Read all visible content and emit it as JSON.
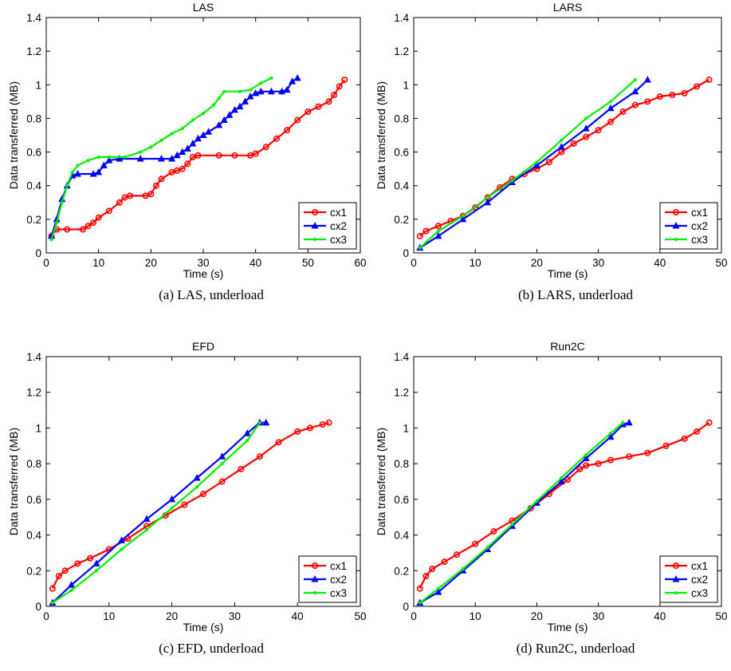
{
  "chart_data": [
    {
      "type": "line",
      "panel": "a",
      "title": "LAS",
      "caption": "(a) LAS, underload",
      "xlabel": "Time (s)",
      "ylabel": "Data transferred (MB)",
      "xlim": [
        0,
        60
      ],
      "ylim": [
        0,
        1.4
      ],
      "xticks": [
        0,
        10,
        20,
        30,
        40,
        50,
        60
      ],
      "yticks": [
        0,
        0.2,
        0.4,
        0.6,
        0.8,
        1,
        1.2,
        1.4
      ],
      "legend": "bottom-right",
      "series": [
        {
          "name": "cx1",
          "color": "#ff0000",
          "marker": "circle",
          "points": [
            [
              1,
              0.1
            ],
            [
              2,
              0.14
            ],
            [
              4,
              0.14
            ],
            [
              7,
              0.14
            ],
            [
              8,
              0.16
            ],
            [
              9,
              0.18
            ],
            [
              10,
              0.21
            ],
            [
              12,
              0.25
            ],
            [
              14,
              0.3
            ],
            [
              15,
              0.33
            ],
            [
              16,
              0.34
            ],
            [
              19,
              0.34
            ],
            [
              20,
              0.35
            ],
            [
              21,
              0.4
            ],
            [
              22,
              0.44
            ],
            [
              24,
              0.48
            ],
            [
              25,
              0.49
            ],
            [
              26,
              0.5
            ],
            [
              27,
              0.53
            ],
            [
              28,
              0.57
            ],
            [
              29,
              0.58
            ],
            [
              33,
              0.58
            ],
            [
              36,
              0.58
            ],
            [
              39,
              0.58
            ],
            [
              40,
              0.59
            ],
            [
              42,
              0.63
            ],
            [
              44,
              0.68
            ],
            [
              46,
              0.73
            ],
            [
              48,
              0.79
            ],
            [
              50,
              0.84
            ],
            [
              52,
              0.87
            ],
            [
              54,
              0.9
            ],
            [
              55,
              0.94
            ],
            [
              56,
              0.99
            ],
            [
              57,
              1.03
            ]
          ]
        },
        {
          "name": "cx2",
          "color": "#0000ff",
          "marker": "triangle",
          "points": [
            [
              1,
              0.1
            ],
            [
              2,
              0.2
            ],
            [
              3,
              0.32
            ],
            [
              4,
              0.4
            ],
            [
              5,
              0.46
            ],
            [
              6,
              0.47
            ],
            [
              9,
              0.47
            ],
            [
              10,
              0.48
            ],
            [
              11,
              0.52
            ],
            [
              12,
              0.55
            ],
            [
              14,
              0.56
            ],
            [
              18,
              0.56
            ],
            [
              22,
              0.56
            ],
            [
              24,
              0.56
            ],
            [
              25,
              0.58
            ],
            [
              26,
              0.6
            ],
            [
              27,
              0.62
            ],
            [
              28,
              0.65
            ],
            [
              29,
              0.68
            ],
            [
              30,
              0.7
            ],
            [
              31,
              0.72
            ],
            [
              33,
              0.76
            ],
            [
              34,
              0.79
            ],
            [
              35,
              0.82
            ],
            [
              36,
              0.85
            ],
            [
              37,
              0.87
            ],
            [
              38,
              0.9
            ],
            [
              39,
              0.93
            ],
            [
              40,
              0.95
            ],
            [
              41,
              0.96
            ],
            [
              43,
              0.96
            ],
            [
              45,
              0.96
            ],
            [
              46,
              0.97
            ],
            [
              47,
              1.02
            ],
            [
              48,
              1.04
            ]
          ]
        },
        {
          "name": "cx3",
          "color": "#00ee00",
          "marker": "dot",
          "points": [
            [
              1,
              0.08
            ],
            [
              2,
              0.18
            ],
            [
              3,
              0.3
            ],
            [
              4,
              0.4
            ],
            [
              5,
              0.48
            ],
            [
              6,
              0.52
            ],
            [
              8,
              0.55
            ],
            [
              10,
              0.57
            ],
            [
              12,
              0.57
            ],
            [
              15,
              0.57
            ],
            [
              18,
              0.6
            ],
            [
              20,
              0.63
            ],
            [
              22,
              0.67
            ],
            [
              24,
              0.71
            ],
            [
              26,
              0.74
            ],
            [
              28,
              0.79
            ],
            [
              30,
              0.83
            ],
            [
              32,
              0.88
            ],
            [
              33,
              0.92
            ],
            [
              34,
              0.96
            ],
            [
              37,
              0.96
            ],
            [
              39,
              0.97
            ],
            [
              41,
              1.01
            ],
            [
              43,
              1.04
            ]
          ]
        }
      ]
    },
    {
      "type": "line",
      "panel": "b",
      "title": "LARS",
      "caption": "(b) LARS, underload",
      "xlabel": "Time (s)",
      "ylabel": "Data transferred (MB)",
      "xlim": [
        0,
        50
      ],
      "ylim": [
        0,
        1.4
      ],
      "xticks": [
        0,
        10,
        20,
        30,
        40,
        50
      ],
      "yticks": [
        0,
        0.2,
        0.4,
        0.6,
        0.8,
        1,
        1.2,
        1.4
      ],
      "legend": "bottom-right",
      "series": [
        {
          "name": "cx1",
          "color": "#ff0000",
          "marker": "circle",
          "points": [
            [
              1,
              0.1
            ],
            [
              2,
              0.13
            ],
            [
              4,
              0.16
            ],
            [
              6,
              0.19
            ],
            [
              8,
              0.22
            ],
            [
              10,
              0.27
            ],
            [
              12,
              0.33
            ],
            [
              14,
              0.39
            ],
            [
              16,
              0.44
            ],
            [
              18,
              0.47
            ],
            [
              20,
              0.5
            ],
            [
              22,
              0.54
            ],
            [
              24,
              0.6
            ],
            [
              26,
              0.65
            ],
            [
              28,
              0.69
            ],
            [
              30,
              0.73
            ],
            [
              32,
              0.78
            ],
            [
              34,
              0.84
            ],
            [
              36,
              0.88
            ],
            [
              38,
              0.9
            ],
            [
              40,
              0.93
            ],
            [
              42,
              0.94
            ],
            [
              44,
              0.95
            ],
            [
              46,
              0.99
            ],
            [
              48,
              1.03
            ]
          ]
        },
        {
          "name": "cx2",
          "color": "#0000ff",
          "marker": "triangle",
          "points": [
            [
              1,
              0.03
            ],
            [
              4,
              0.1
            ],
            [
              8,
              0.2
            ],
            [
              12,
              0.3
            ],
            [
              16,
              0.42
            ],
            [
              20,
              0.52
            ],
            [
              24,
              0.63
            ],
            [
              28,
              0.74
            ],
            [
              32,
              0.86
            ],
            [
              36,
              0.96
            ],
            [
              38,
              1.03
            ]
          ]
        },
        {
          "name": "cx3",
          "color": "#00ee00",
          "marker": "dot",
          "points": [
            [
              1,
              0.03
            ],
            [
              4,
              0.13
            ],
            [
              8,
              0.22
            ],
            [
              12,
              0.33
            ],
            [
              16,
              0.43
            ],
            [
              20,
              0.54
            ],
            [
              24,
              0.67
            ],
            [
              28,
              0.8
            ],
            [
              32,
              0.9
            ],
            [
              36,
              1.03
            ]
          ]
        }
      ]
    },
    {
      "type": "line",
      "panel": "c",
      "title": "EFD",
      "caption": "(c) EFD, underload",
      "xlabel": "Time (s)",
      "ylabel": "Data transferred (MB)",
      "xlim": [
        0,
        50
      ],
      "ylim": [
        0,
        1.4
      ],
      "xticks": [
        0,
        10,
        20,
        30,
        40,
        50
      ],
      "yticks": [
        0,
        0.2,
        0.4,
        0.6,
        0.8,
        1,
        1.2,
        1.4
      ],
      "legend": "bottom-right",
      "series": [
        {
          "name": "cx1",
          "color": "#ff0000",
          "marker": "circle",
          "points": [
            [
              1,
              0.1
            ],
            [
              2,
              0.17
            ],
            [
              3,
              0.2
            ],
            [
              5,
              0.24
            ],
            [
              7,
              0.27
            ],
            [
              10,
              0.32
            ],
            [
              13,
              0.38
            ],
            [
              16,
              0.45
            ],
            [
              19,
              0.51
            ],
            [
              22,
              0.57
            ],
            [
              25,
              0.63
            ],
            [
              28,
              0.7
            ],
            [
              31,
              0.77
            ],
            [
              34,
              0.84
            ],
            [
              37,
              0.92
            ],
            [
              40,
              0.98
            ],
            [
              42,
              1.0
            ],
            [
              44,
              1.02
            ],
            [
              45,
              1.03
            ]
          ]
        },
        {
          "name": "cx2",
          "color": "#0000ff",
          "marker": "triangle",
          "points": [
            [
              1,
              0.02
            ],
            [
              4,
              0.12
            ],
            [
              8,
              0.24
            ],
            [
              12,
              0.37
            ],
            [
              16,
              0.49
            ],
            [
              20,
              0.6
            ],
            [
              24,
              0.72
            ],
            [
              28,
              0.84
            ],
            [
              32,
              0.97
            ],
            [
              34,
              1.03
            ],
            [
              35,
              1.03
            ]
          ]
        },
        {
          "name": "cx3",
          "color": "#00ee00",
          "marker": "dot",
          "points": [
            [
              1,
              0.02
            ],
            [
              4,
              0.09
            ],
            [
              8,
              0.2
            ],
            [
              12,
              0.32
            ],
            [
              16,
              0.43
            ],
            [
              20,
              0.55
            ],
            [
              24,
              0.67
            ],
            [
              28,
              0.8
            ],
            [
              32,
              0.93
            ],
            [
              34,
              1.03
            ]
          ]
        }
      ]
    },
    {
      "type": "line",
      "panel": "d",
      "title": "Run2C",
      "caption": "(d) Run2C, underload",
      "xlabel": "Time (s)",
      "ylabel": "Data transferred (MB)",
      "xlim": [
        0,
        50
      ],
      "ylim": [
        0,
        1.4
      ],
      "xticks": [
        0,
        10,
        20,
        30,
        40,
        50
      ],
      "yticks": [
        0,
        0.2,
        0.4,
        0.6,
        0.8,
        1,
        1.2,
        1.4
      ],
      "legend": "bottom-right",
      "series": [
        {
          "name": "cx1",
          "color": "#ff0000",
          "marker": "circle",
          "points": [
            [
              1,
              0.1
            ],
            [
              2,
              0.17
            ],
            [
              3,
              0.21
            ],
            [
              5,
              0.25
            ],
            [
              7,
              0.29
            ],
            [
              10,
              0.35
            ],
            [
              13,
              0.42
            ],
            [
              16,
              0.48
            ],
            [
              19,
              0.55
            ],
            [
              22,
              0.63
            ],
            [
              25,
              0.71
            ],
            [
              27,
              0.77
            ],
            [
              28,
              0.79
            ],
            [
              30,
              0.8
            ],
            [
              32,
              0.82
            ],
            [
              35,
              0.84
            ],
            [
              38,
              0.86
            ],
            [
              41,
              0.9
            ],
            [
              44,
              0.94
            ],
            [
              46,
              0.98
            ],
            [
              48,
              1.03
            ]
          ]
        },
        {
          "name": "cx2",
          "color": "#0000ff",
          "marker": "triangle",
          "points": [
            [
              1,
              0.02
            ],
            [
              4,
              0.08
            ],
            [
              8,
              0.2
            ],
            [
              12,
              0.32
            ],
            [
              16,
              0.45
            ],
            [
              20,
              0.58
            ],
            [
              24,
              0.7
            ],
            [
              28,
              0.83
            ],
            [
              32,
              0.95
            ],
            [
              34,
              1.02
            ],
            [
              35,
              1.03
            ]
          ]
        },
        {
          "name": "cx3",
          "color": "#00ee00",
          "marker": "dot",
          "points": [
            [
              1,
              0.02
            ],
            [
              4,
              0.1
            ],
            [
              8,
              0.21
            ],
            [
              12,
              0.33
            ],
            [
              16,
              0.46
            ],
            [
              20,
              0.59
            ],
            [
              24,
              0.72
            ],
            [
              28,
              0.85
            ],
            [
              32,
              0.97
            ],
            [
              34,
              1.03
            ]
          ]
        }
      ]
    }
  ]
}
